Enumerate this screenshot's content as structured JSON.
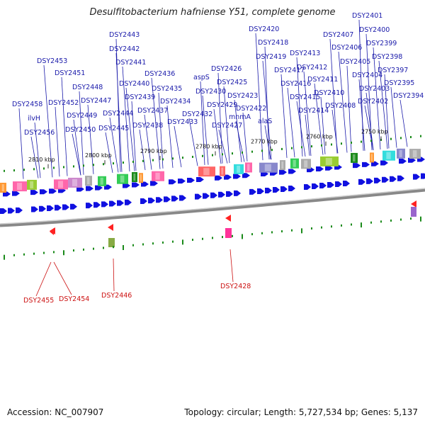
{
  "title": "Desulfitobacterium hafniense Y51, complete genome",
  "footer": {
    "accession": "Accession: NC_007907",
    "summary": "Topology: circular; Length: 5,727,534 bp; Genes: 5,137"
  },
  "scale_labels": [
    "2810 kbp",
    "2800 kbp",
    "2790 kbp",
    "2780 kbp",
    "2770 kbp",
    "2760 kbp",
    "2750 kbp"
  ],
  "forward_genes": [
    "DSY2458",
    "ilvH",
    "DSY2456",
    "DSY2453",
    "DSY2452",
    "DSY2451",
    "DSY2449",
    "DSY2450",
    "DSY2448",
    "DSY2447",
    "DSY2445",
    "DSY2444",
    "DSY2443",
    "DSY2442",
    "DSY2441",
    "DSY2440",
    "DSY2439",
    "DSY2438",
    "DSY2437",
    "DSY2436",
    "DSY2435",
    "DSY2434",
    "DSY2433",
    "DSY2432",
    "aspS",
    "DSY2430",
    "DSY2429",
    "DSY2427",
    "DSY2426",
    "DSY2425",
    "DSY2423",
    "mnmA",
    "DSY2422",
    "alaS",
    "DSY2420",
    "DSY2419",
    "DSY2418",
    "DSY2417",
    "DSY2416",
    "DSY2415",
    "DSY2414",
    "DSY2413",
    "DSY2412",
    "DSY2411",
    "DSY2410",
    "DSY2408",
    "DSY2407",
    "DSY2406",
    "DSY2405",
    "DSY2404",
    "DSY2403",
    "DSY2402",
    "DSY2401",
    "DSY2400",
    "DSY2399",
    "DSY2398",
    "DSY2397",
    "DSY2395",
    "DSY2394"
  ],
  "reverse_genes": [
    "DSY2455",
    "DSY2454",
    "DSY2446",
    "DSY2428"
  ],
  "colors": {
    "forward_label": "#1a1aaa",
    "reverse_label": "#cc1111",
    "gene_arrow": "#1010e0",
    "backbone": "#777777",
    "tick": "#1a8a1a"
  }
}
